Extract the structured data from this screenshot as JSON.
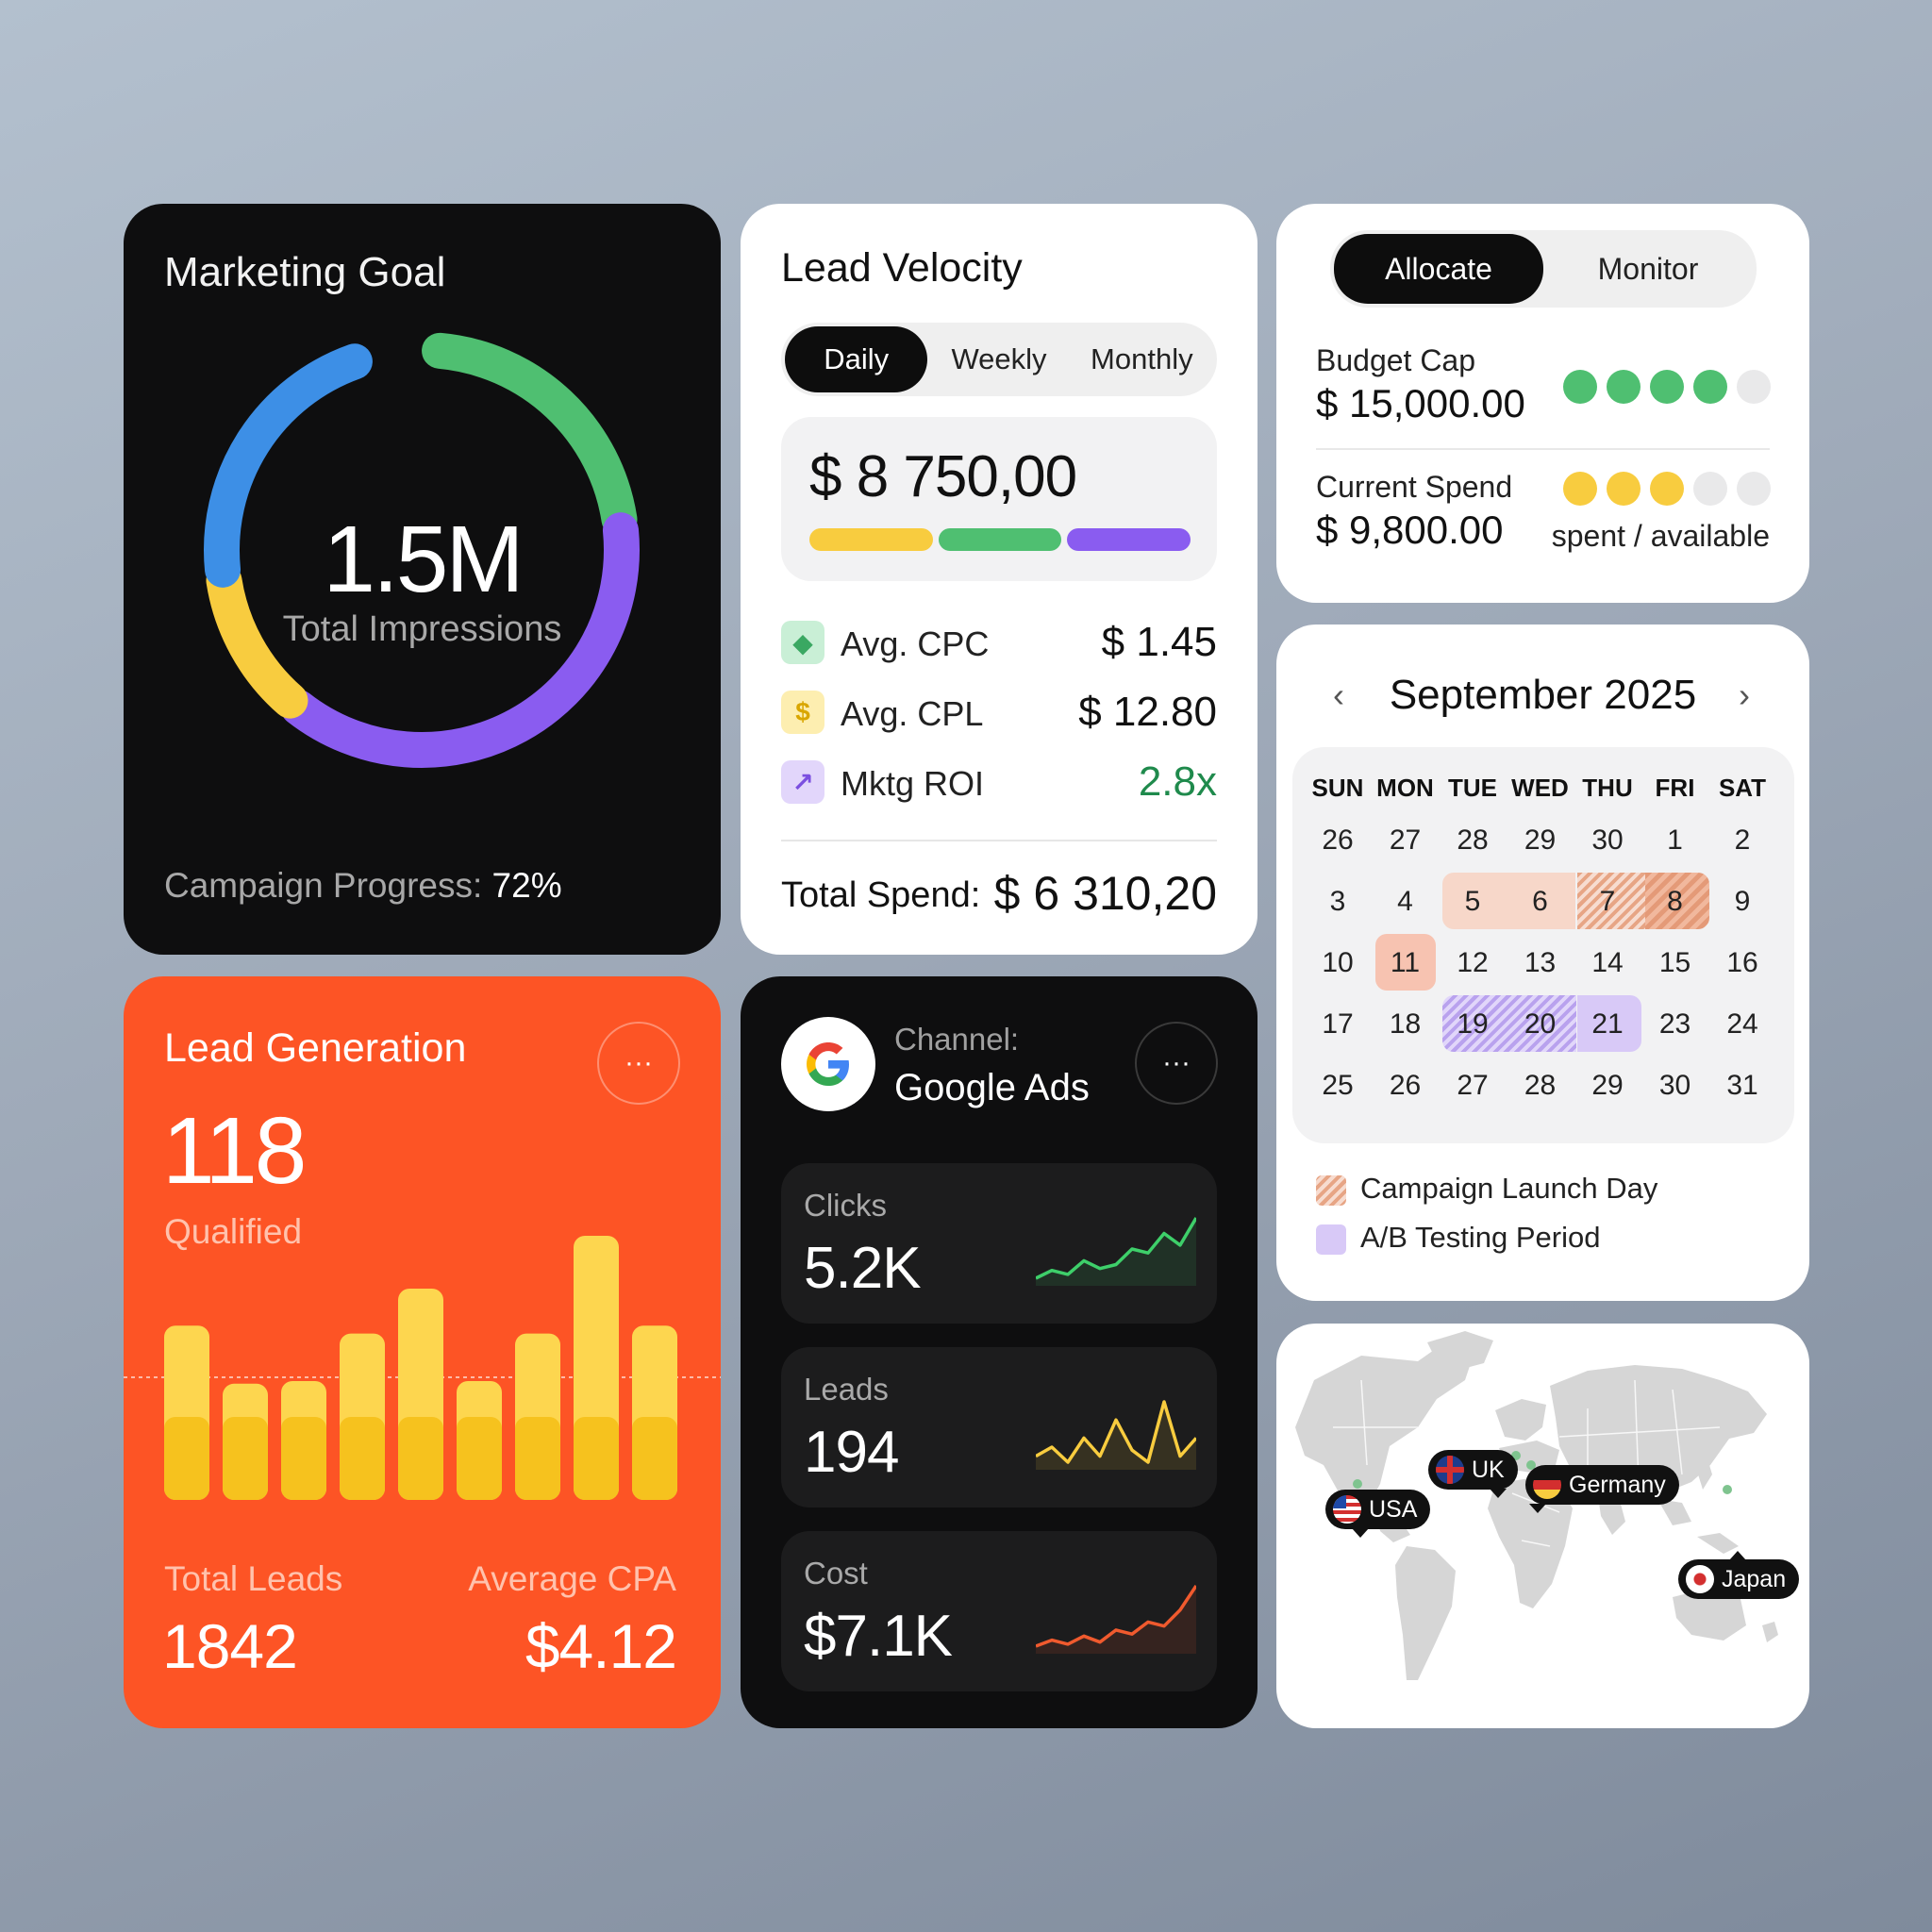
{
  "colors": {
    "blue": "#3d8fe6",
    "green": "#4fbf71",
    "purple": "#8a5cf0",
    "yellow": "#f8cc3f",
    "orange": "#fd5425",
    "roi_green": "#1f8a4c"
  },
  "marketing_goal": {
    "title": "Marketing Goal",
    "value": "1.5M",
    "label": "Total Impressions",
    "progress_label": "Campaign Progress:",
    "progress_value": "72%",
    "ring_segments": [
      {
        "color": "#4fbf71",
        "fraction": 0.22
      },
      {
        "color": "#8a5cf0",
        "fraction": 0.38
      },
      {
        "color": "#f8cc3f",
        "fraction": 0.12
      },
      {
        "color": "#3d8fe6",
        "fraction": 0.22
      }
    ]
  },
  "lead_velocity": {
    "title": "Lead Velocity",
    "tabs": [
      "Daily",
      "Weekly",
      "Monthly"
    ],
    "active_tab": 0,
    "amount": "$ 8 750,00",
    "bar_colors": [
      "#f8cc3f",
      "#4fbf71",
      "#8a5cf0"
    ],
    "metrics": [
      {
        "label": "Avg. CPC",
        "value": "$ 1.45",
        "icon": "tag-icon",
        "icon_glyph": "◆",
        "icon_bg": "#c9efd6",
        "icon_fg": "#3aa862",
        "value_color": "#111111"
      },
      {
        "label": "Avg. CPL",
        "value": "$ 12.80",
        "icon": "dollar-icon",
        "icon_glyph": "$",
        "icon_bg": "#fdeeb0",
        "icon_fg": "#d9a600",
        "value_color": "#111111"
      },
      {
        "label": "Mktg ROI",
        "value": "2.8x",
        "icon": "trend-up-icon",
        "icon_glyph": "↗",
        "icon_bg": "#e2d6fb",
        "icon_fg": "#7b4fe0",
        "value_color": "#1f8a4c"
      }
    ],
    "total_label": "Total Spend:",
    "total_value": "$ 6 310,20"
  },
  "budget": {
    "tabs": [
      "Allocate",
      "Monitor"
    ],
    "active_tab": 0,
    "cap_label": "Budget Cap",
    "cap_value": "$ 15,000.00",
    "cap_dots": {
      "filled": 4,
      "total": 5,
      "color": "#4fbf71"
    },
    "spend_label": "Current Spend",
    "spend_value": "$ 9,800.00",
    "spend_dots": {
      "filled": 3,
      "total": 5,
      "color": "#f8cc3f"
    },
    "note": "spent / available"
  },
  "calendar": {
    "prev_icon": "‹",
    "next_icon": "›",
    "month": "September 2025",
    "weekdays": [
      "SUN",
      "MON",
      "TUE",
      "WED",
      "THU",
      "FRI",
      "SAT"
    ],
    "weeks": [
      [
        "26",
        "27",
        "28",
        "29",
        "30",
        "1",
        "2"
      ],
      [
        "3",
        "4",
        "5",
        "6",
        "7",
        "8",
        "9"
      ],
      [
        "10",
        "11",
        "12",
        "13",
        "14",
        "15",
        "16"
      ],
      [
        "17",
        "18",
        "19",
        "20",
        "21",
        "23",
        "24"
      ],
      [
        "25",
        "26",
        "27",
        "28",
        "29",
        "30",
        "31"
      ]
    ],
    "legend": [
      {
        "label": "Campaign Launch Day",
        "style": "hatched-orange"
      },
      {
        "label": "A/B Testing Period",
        "style": "solid-purple"
      }
    ]
  },
  "lead_generation": {
    "title": "Lead Generation",
    "more_icon": "···",
    "count": "118",
    "count_label": "Qualified",
    "bar_levels": [
      0.66,
      0.44,
      0.45,
      0.63,
      0.8,
      0.45,
      0.63,
      1.0,
      0.66
    ],
    "total_leads_label": "Total Leads",
    "total_leads_value": "1842",
    "cpa_label": "Average CPA",
    "cpa_value": "$4.12"
  },
  "google_ads": {
    "channel_label": "Channel:",
    "channel_value": "Google Ads",
    "more_icon": "···",
    "stats": [
      {
        "label": "Clicks",
        "value": "5.2K",
        "color": "#3ecf6a",
        "trend": [
          5,
          9,
          7,
          14,
          10,
          12,
          20,
          18,
          28,
          22,
          36
        ]
      },
      {
        "label": "Leads",
        "value": "194",
        "color": "#f8cc3f",
        "trend": [
          12,
          15,
          10,
          18,
          12,
          24,
          14,
          10,
          30,
          12,
          18
        ]
      },
      {
        "label": "Cost",
        "value": "$7.1K",
        "color": "#f05a2e",
        "trend": [
          4,
          7,
          5,
          9,
          6,
          12,
          10,
          16,
          14,
          22,
          34
        ]
      }
    ]
  },
  "map": {
    "pins": [
      {
        "label": "USA",
        "flag": "usa"
      },
      {
        "label": "UK",
        "flag": "uk"
      },
      {
        "label": "Germany",
        "flag": "germany"
      },
      {
        "label": "Japan",
        "flag": "japan"
      }
    ]
  }
}
